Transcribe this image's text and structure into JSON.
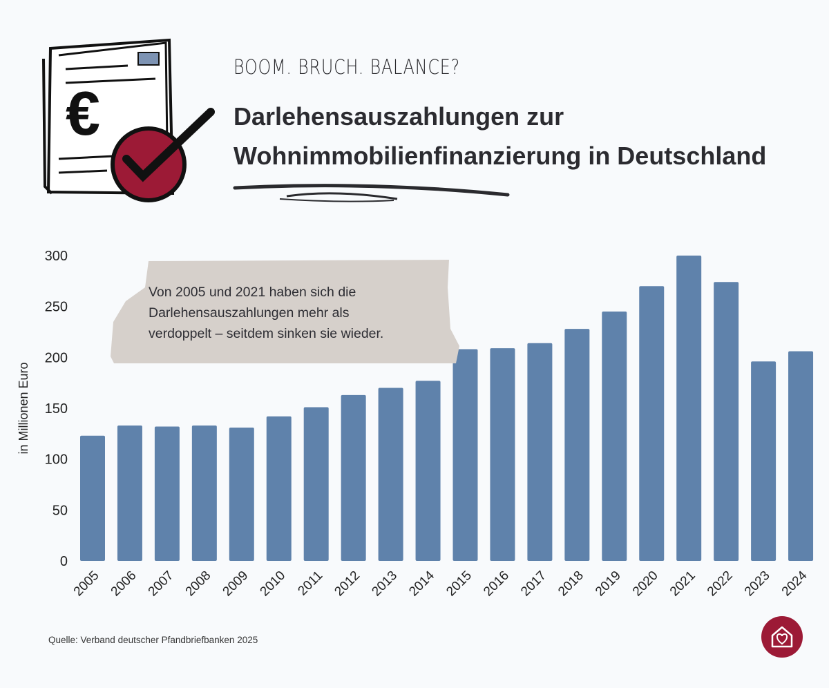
{
  "header": {
    "kicker": "BOOM. BRUCH. BALANCE?",
    "title_line1": "Darlehensauszahlungen zur",
    "title_line2": "Wohnimmobilienfinanzierung in Deutschland"
  },
  "annotation": {
    "line1": "Von 2005 und 2021 haben sich die",
    "line2": "Darlehensauszahlungen mehr als",
    "line3": "verdoppelt – seitdem sinken sie wieder."
  },
  "source": "Quelle: Verband deutscher Pfandbriefbanken 2025",
  "icons": {
    "document": "euro-document-check-icon",
    "logo": "house-heart-icon"
  },
  "colors": {
    "bar": "#5f82ab",
    "accent": "#9c1a36",
    "note": "#d6d0cb"
  },
  "chart_data": {
    "type": "bar",
    "categories": [
      "2005",
      "2006",
      "2007",
      "2008",
      "2009",
      "2010",
      "2011",
      "2012",
      "2013",
      "2014",
      "2015",
      "2016",
      "2017",
      "2018",
      "2019",
      "2020",
      "2021",
      "2022",
      "2023",
      "2024"
    ],
    "values": [
      123,
      133,
      132,
      133,
      131,
      142,
      151,
      163,
      170,
      177,
      208,
      209,
      214,
      228,
      245,
      270,
      300,
      274,
      196,
      206
    ],
    "ylabel": "in Millionen Euro",
    "ylim": [
      0,
      300
    ],
    "yticks": [
      0,
      50,
      100,
      150,
      200,
      250,
      300
    ],
    "grid": false
  }
}
